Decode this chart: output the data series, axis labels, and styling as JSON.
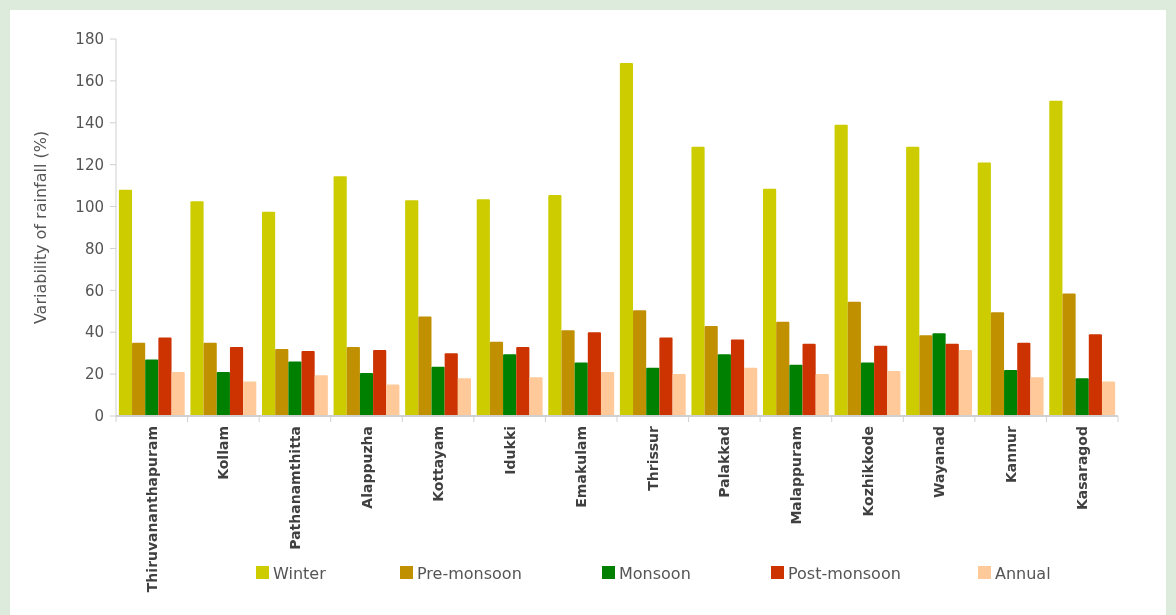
{
  "chart_data": {
    "type": "bar",
    "ylabel": "Variability of rainfall (%)",
    "categories": [
      "Thiruvananthapuram",
      "Kollam",
      "Pathanamthitta",
      "Alappuzha",
      "Kottayam",
      "Idukki",
      "Emakulam",
      "Thrissur",
      "Palakkad",
      "Malappuram",
      "Kozhikkode",
      "Wayanad",
      "Kannur",
      "Kasaragod"
    ],
    "series": [
      {
        "name": "Winter",
        "color": "#cccc00",
        "values": [
          108,
          102.5,
          97.5,
          114.5,
          103,
          103.5,
          105.5,
          168.5,
          128.5,
          108.5,
          139,
          128.5,
          121,
          150.5
        ]
      },
      {
        "name": "Pre-monsoon",
        "color": "#c09000",
        "values": [
          35,
          35,
          32,
          33,
          47.5,
          35.5,
          41,
          50.5,
          43,
          45,
          54.5,
          38.5,
          49.5,
          58.5
        ]
      },
      {
        "name": "Monsoon",
        "color": "#008000",
        "values": [
          27,
          21,
          26,
          20.5,
          23.5,
          29.5,
          25.5,
          23,
          29.5,
          24.5,
          25.5,
          39.5,
          22,
          18
        ]
      },
      {
        "name": "Post-monsoon",
        "color": "#cc3300",
        "values": [
          37.5,
          33,
          31,
          31.5,
          30,
          33,
          40,
          37.5,
          36.5,
          34.5,
          33.5,
          34.5,
          35,
          39
        ]
      },
      {
        "name": "Annual",
        "color": "#ffc999",
        "values": [
          21,
          16.5,
          19.5,
          15,
          18,
          18.5,
          21,
          20,
          23,
          20,
          21.5,
          31.5,
          18.5,
          16.5
        ]
      }
    ],
    "ylim": [
      0,
      180
    ],
    "yticks": [
      0,
      20,
      40,
      60,
      80,
      100,
      120,
      140,
      160,
      180
    ],
    "grid": false,
    "legend": "bottom"
  }
}
